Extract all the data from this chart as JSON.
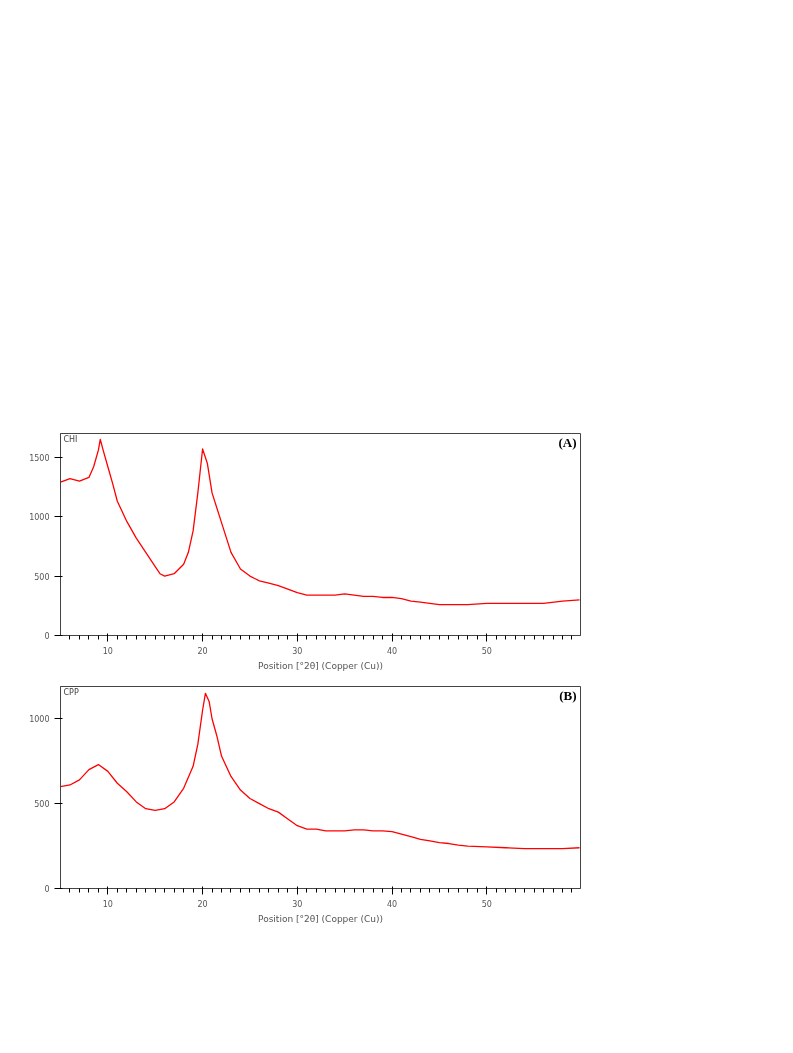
{
  "chart_data": [
    {
      "type": "line",
      "xlabel": "Position [°2θ] (Copper (Cu))",
      "annotations": [
        "CHI",
        "(A)"
      ],
      "xlim": [
        5,
        59.9
      ],
      "ylim": [
        0,
        1700
      ],
      "xticks": [
        {
          "value": 6,
          "label": null
        },
        {
          "value": 7,
          "label": null
        },
        {
          "value": 8,
          "label": null
        },
        {
          "value": 9,
          "label": null
        },
        10,
        {
          "value": 11,
          "label": null
        },
        {
          "value": 12,
          "label": null
        },
        {
          "value": 13,
          "label": null
        },
        {
          "value": 14,
          "label": null
        },
        {
          "value": 15,
          "label": null
        },
        {
          "value": 16,
          "label": null
        },
        {
          "value": 17,
          "label": null
        },
        {
          "value": 18,
          "label": null
        },
        {
          "value": 19,
          "label": null
        },
        20,
        {
          "value": 21,
          "label": null
        },
        {
          "value": 22,
          "label": null
        },
        {
          "value": 23,
          "label": null
        },
        {
          "value": 24,
          "label": null
        },
        {
          "value": 25,
          "label": null
        },
        {
          "value": 26,
          "label": null
        },
        {
          "value": 27,
          "label": null
        },
        {
          "value": 28,
          "label": null
        },
        {
          "value": 29,
          "label": null
        },
        30,
        {
          "value": 31,
          "label": null
        },
        {
          "value": 32,
          "label": null
        },
        {
          "value": 33,
          "label": null
        },
        {
          "value": 34,
          "label": null
        },
        {
          "value": 35,
          "label": null
        },
        {
          "value": 36,
          "label": null
        },
        {
          "value": 37,
          "label": null
        },
        {
          "value": 38,
          "label": null
        },
        {
          "value": 39,
          "label": null
        },
        40,
        {
          "value": 41,
          "label": null
        },
        {
          "value": 42,
          "label": null
        },
        {
          "value": 43,
          "label": null
        },
        {
          "value": 44,
          "label": null
        },
        {
          "value": 45,
          "label": null
        },
        {
          "value": 46,
          "label": null
        },
        {
          "value": 47,
          "label": null
        },
        {
          "value": 48,
          "label": null
        },
        {
          "value": 49,
          "label": null
        },
        50,
        {
          "value": 51,
          "label": null
        },
        {
          "value": 52,
          "label": null
        },
        {
          "value": 53,
          "label": null
        },
        {
          "value": 54,
          "label": null
        },
        {
          "value": 55,
          "label": null
        },
        {
          "value": 56,
          "label": null
        },
        {
          "value": 57,
          "label": null
        },
        {
          "value": 58,
          "label": null
        },
        {
          "value": 59,
          "label": null
        }
      ],
      "yticks": [
        0,
        500,
        1000,
        1500
      ],
      "grid": false,
      "series": [
        {
          "color": "#ff0000",
          "x": [
            5,
            6,
            7,
            8,
            8.5,
            9,
            9.2,
            9.5,
            10,
            10.5,
            11,
            12,
            13,
            14,
            15,
            15.5,
            16,
            17,
            18,
            18.5,
            19,
            19.5,
            20,
            20.5,
            21,
            22,
            23,
            24,
            25,
            26,
            27,
            28,
            29,
            30,
            31,
            32,
            33,
            34,
            35,
            36,
            37,
            38,
            39,
            40,
            41,
            42,
            43,
            44,
            45,
            46,
            48,
            50,
            52,
            54,
            56,
            58,
            59.8
          ],
          "values": [
            1290,
            1320,
            1300,
            1330,
            1420,
            1560,
            1650,
            1560,
            1420,
            1280,
            1130,
            960,
            820,
            700,
            580,
            520,
            500,
            520,
            600,
            700,
            880,
            1200,
            1570,
            1450,
            1200,
            950,
            700,
            560,
            500,
            460,
            440,
            420,
            390,
            360,
            340,
            340,
            340,
            340,
            350,
            340,
            330,
            330,
            320,
            320,
            310,
            290,
            280,
            270,
            260,
            260,
            260,
            270,
            270,
            270,
            270,
            290,
            300
          ]
        }
      ]
    },
    {
      "type": "line",
      "xlabel": "Position [°2θ] (Copper (Cu))",
      "annotations": [
        "CPP",
        "(B)"
      ],
      "xlim": [
        5,
        59.9
      ],
      "ylim": [
        0,
        1190
      ],
      "xticks": [
        {
          "value": 6,
          "label": null
        },
        {
          "value": 7,
          "label": null
        },
        {
          "value": 8,
          "label": null
        },
        {
          "value": 9,
          "label": null
        },
        10,
        {
          "value": 11,
          "label": null
        },
        {
          "value": 12,
          "label": null
        },
        {
          "value": 13,
          "label": null
        },
        {
          "value": 14,
          "label": null
        },
        {
          "value": 15,
          "label": null
        },
        {
          "value": 16,
          "label": null
        },
        {
          "value": 17,
          "label": null
        },
        {
          "value": 18,
          "label": null
        },
        {
          "value": 19,
          "label": null
        },
        20,
        {
          "value": 21,
          "label": null
        },
        {
          "value": 22,
          "label": null
        },
        {
          "value": 23,
          "label": null
        },
        {
          "value": 24,
          "label": null
        },
        {
          "value": 25,
          "label": null
        },
        {
          "value": 26,
          "label": null
        },
        {
          "value": 27,
          "label": null
        },
        {
          "value": 28,
          "label": null
        },
        {
          "value": 29,
          "label": null
        },
        30,
        {
          "value": 31,
          "label": null
        },
        {
          "value": 32,
          "label": null
        },
        {
          "value": 33,
          "label": null
        },
        {
          "value": 34,
          "label": null
        },
        {
          "value": 35,
          "label": null
        },
        {
          "value": 36,
          "label": null
        },
        {
          "value": 37,
          "label": null
        },
        {
          "value": 38,
          "label": null
        },
        {
          "value": 39,
          "label": null
        },
        40,
        {
          "value": 41,
          "label": null
        },
        {
          "value": 42,
          "label": null
        },
        {
          "value": 43,
          "label": null
        },
        {
          "value": 44,
          "label": null
        },
        {
          "value": 45,
          "label": null
        },
        {
          "value": 46,
          "label": null
        },
        {
          "value": 47,
          "label": null
        },
        {
          "value": 48,
          "label": null
        },
        {
          "value": 49,
          "label": null
        },
        50,
        {
          "value": 51,
          "label": null
        },
        {
          "value": 52,
          "label": null
        },
        {
          "value": 53,
          "label": null
        },
        {
          "value": 54,
          "label": null
        },
        {
          "value": 55,
          "label": null
        },
        {
          "value": 56,
          "label": null
        },
        {
          "value": 57,
          "label": null
        },
        {
          "value": 58,
          "label": null
        },
        {
          "value": 59,
          "label": null
        }
      ],
      "yticks": [
        0,
        500,
        1000
      ],
      "grid": false,
      "series": [
        {
          "color": "#ff0000",
          "x": [
            5,
            6,
            7,
            8,
            9,
            10,
            11,
            12,
            13,
            14,
            15,
            16,
            17,
            18,
            19,
            19.5,
            20,
            20.3,
            20.7,
            21,
            21.5,
            22,
            23,
            24,
            25,
            26,
            27,
            28,
            29,
            30,
            31,
            32,
            33,
            34,
            35,
            36,
            37,
            38,
            39,
            40,
            41,
            42,
            43,
            44,
            45,
            46,
            47,
            48,
            50,
            52,
            54,
            56,
            58,
            59.8
          ],
          "values": [
            600,
            610,
            640,
            700,
            730,
            690,
            620,
            570,
            510,
            470,
            460,
            470,
            510,
            590,
            720,
            850,
            1050,
            1150,
            1100,
            1000,
            900,
            780,
            660,
            580,
            530,
            500,
            470,
            450,
            410,
            370,
            350,
            350,
            340,
            340,
            340,
            345,
            345,
            340,
            340,
            335,
            320,
            305,
            290,
            280,
            270,
            265,
            255,
            250,
            245,
            240,
            235,
            235,
            235,
            240
          ]
        }
      ]
    }
  ]
}
